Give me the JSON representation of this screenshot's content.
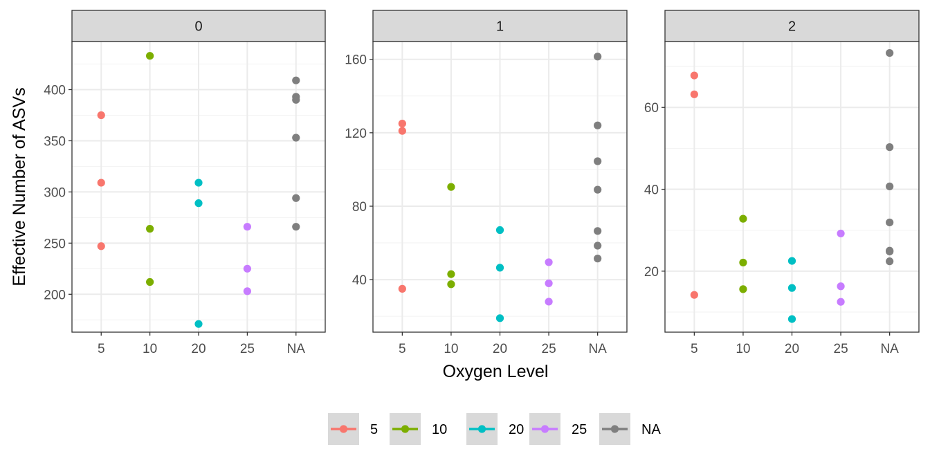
{
  "chart_data": {
    "type": "scatter",
    "xlabel": "Oxygen Level",
    "ylabel": "Effective Number of ASVs",
    "categories": [
      "5",
      "10",
      "20",
      "25",
      "NA"
    ],
    "legend": {
      "position": "bottom",
      "entries": [
        {
          "label": "5",
          "color": "#F8766D"
        },
        {
          "label": "10",
          "color": "#7CAE00"
        },
        {
          "label": "20",
          "color": "#00BFC4"
        },
        {
          "label": "25",
          "color": "#C77CFF"
        },
        {
          "label": "NA",
          "color": "#7F7F7F"
        }
      ]
    },
    "grid": true,
    "panels": [
      {
        "label": "0",
        "ylim": [
          163,
          447
        ],
        "yticks": [
          200,
          250,
          300,
          350,
          400
        ],
        "yminor": [
          175,
          225,
          275,
          325,
          375,
          425
        ],
        "points": [
          {
            "x": "5",
            "y": 375
          },
          {
            "x": "5",
            "y": 309
          },
          {
            "x": "5",
            "y": 247
          },
          {
            "x": "10",
            "y": 433
          },
          {
            "x": "10",
            "y": 264
          },
          {
            "x": "10",
            "y": 212
          },
          {
            "x": "20",
            "y": 309
          },
          {
            "x": "20",
            "y": 289
          },
          {
            "x": "20",
            "y": 171
          },
          {
            "x": "25",
            "y": 266
          },
          {
            "x": "25",
            "y": 225
          },
          {
            "x": "25",
            "y": 203
          },
          {
            "x": "NA",
            "y": 409
          },
          {
            "x": "NA",
            "y": 393
          },
          {
            "x": "NA",
            "y": 390
          },
          {
            "x": "NA",
            "y": 353
          },
          {
            "x": "NA",
            "y": 294
          },
          {
            "x": "NA",
            "y": 266
          }
        ]
      },
      {
        "label": "1",
        "ylim": [
          11.4,
          169.7
        ],
        "yticks": [
          40,
          80,
          120,
          160
        ],
        "yminor": [
          20,
          60,
          100,
          140
        ],
        "points": [
          {
            "x": "5",
            "y": 125
          },
          {
            "x": "5",
            "y": 121
          },
          {
            "x": "5",
            "y": 35
          },
          {
            "x": "10",
            "y": 90.5
          },
          {
            "x": "10",
            "y": 43
          },
          {
            "x": "10",
            "y": 37.5
          },
          {
            "x": "20",
            "y": 67
          },
          {
            "x": "20",
            "y": 46.5
          },
          {
            "x": "20",
            "y": 19
          },
          {
            "x": "25",
            "y": 49.5
          },
          {
            "x": "25",
            "y": 38
          },
          {
            "x": "25",
            "y": 28
          },
          {
            "x": "NA",
            "y": 161.5
          },
          {
            "x": "NA",
            "y": 124
          },
          {
            "x": "NA",
            "y": 104.5
          },
          {
            "x": "NA",
            "y": 89
          },
          {
            "x": "NA",
            "y": 66.5
          },
          {
            "x": "NA",
            "y": 58.5
          },
          {
            "x": "NA",
            "y": 51.5
          }
        ]
      },
      {
        "label": "2",
        "ylim": [
          5.1,
          76.1
        ],
        "yticks": [
          20,
          40,
          60
        ],
        "yminor": [
          10,
          30,
          50,
          70
        ],
        "points": [
          {
            "x": "5",
            "y": 67.8
          },
          {
            "x": "5",
            "y": 63.2
          },
          {
            "x": "5",
            "y": 14.2
          },
          {
            "x": "10",
            "y": 32.8
          },
          {
            "x": "10",
            "y": 22.1
          },
          {
            "x": "10",
            "y": 15.6
          },
          {
            "x": "20",
            "y": 22.5
          },
          {
            "x": "20",
            "y": 15.9
          },
          {
            "x": "20",
            "y": 8.3
          },
          {
            "x": "25",
            "y": 29.2
          },
          {
            "x": "25",
            "y": 16.3
          },
          {
            "x": "25",
            "y": 12.5
          },
          {
            "x": "NA",
            "y": 73.3
          },
          {
            "x": "NA",
            "y": 50.3
          },
          {
            "x": "NA",
            "y": 40.7
          },
          {
            "x": "NA",
            "y": 31.9
          },
          {
            "x": "NA",
            "y": 25
          },
          {
            "x": "NA",
            "y": 24.8
          },
          {
            "x": "NA",
            "y": 22.4
          }
        ]
      }
    ]
  }
}
